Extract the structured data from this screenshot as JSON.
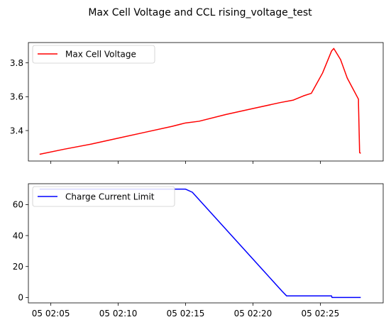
{
  "suptitle": "Max Cell Voltage and CCL rising_voltage_test",
  "chart_data": [
    {
      "type": "line",
      "title": "",
      "xlabel": "",
      "ylabel": "",
      "xlim": [
        "05 02:03:20",
        "05 02:29:40"
      ],
      "ylim": [
        3.22,
        3.92
      ],
      "yticks": [
        3.4,
        3.6,
        3.8
      ],
      "ytick_labels": [
        "3.4",
        "3.6",
        "3.8"
      ],
      "xtick_labels_visible": false,
      "legend_position": "top-left",
      "grid": false,
      "series": [
        {
          "name": "Max Cell Voltage",
          "color": "#ff0000",
          "x": [
            "05 02:04:10",
            "05 02:06:00",
            "05 02:08:00",
            "05 02:10:00",
            "05 02:12:00",
            "05 02:14:00",
            "05 02:15:00",
            "05 02:16:00",
            "05 02:18:00",
            "05 02:20:00",
            "05 02:22:00",
            "05 02:23:00",
            "05 02:23:45",
            "05 02:24:20",
            "05 02:25:10",
            "05 02:25:50",
            "05 02:26:00",
            "05 02:26:30",
            "05 02:27:00",
            "05 02:27:40",
            "05 02:27:50",
            "05 02:27:50",
            "05 02:27:55",
            "05 02:28:00"
          ],
          "y": [
            3.26,
            3.29,
            3.32,
            3.355,
            3.39,
            3.425,
            3.445,
            3.455,
            3.495,
            3.53,
            3.565,
            3.58,
            3.605,
            3.62,
            3.74,
            3.87,
            3.885,
            3.82,
            3.71,
            3.61,
            3.585,
            3.56,
            3.27,
            3.265
          ]
        }
      ]
    },
    {
      "type": "line",
      "title": "",
      "xlabel": "",
      "ylabel": "",
      "xlim": [
        "05 02:03:20",
        "05 02:29:40"
      ],
      "ylim": [
        -3.5,
        73.5
      ],
      "yticks": [
        0,
        20,
        40,
        60
      ],
      "ytick_labels": [
        "0",
        "20",
        "40",
        "60"
      ],
      "xticks": [
        "05 02:05",
        "05 02:10",
        "05 02:15",
        "05 02:20",
        "05 02:25"
      ],
      "xtick_labels": [
        "05 02:05",
        "05 02:10",
        "05 02:15",
        "05 02:20",
        "05 02:25"
      ],
      "legend_position": "top-left",
      "grid": false,
      "series": [
        {
          "name": "Charge Current Limit",
          "color": "#0000ff",
          "x": [
            "05 02:04:10",
            "05 02:15:00",
            "05 02:15:30",
            "05 02:22:10",
            "05 02:22:30",
            "05 02:25:50",
            "05 02:25:52",
            "05 02:28:00"
          ],
          "y": [
            70,
            70,
            68,
            4,
            1,
            1,
            0,
            0
          ]
        }
      ]
    }
  ]
}
